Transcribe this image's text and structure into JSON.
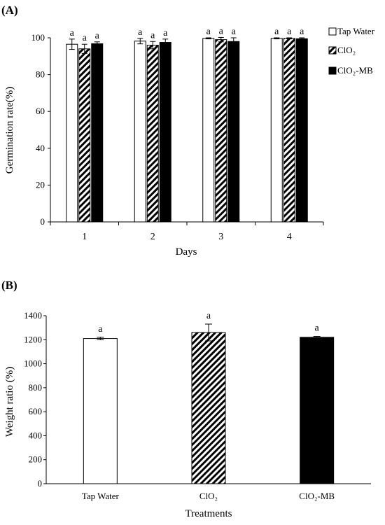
{
  "chart_data": [
    {
      "panel_label": "(A)",
      "type": "bar",
      "xlabel": "Days",
      "ylabel": "Germination rate(%)",
      "ylim": [
        0,
        100
      ],
      "yticks": [
        0,
        20,
        40,
        60,
        80,
        100
      ],
      "categories": [
        "1",
        "2",
        "3",
        "4"
      ],
      "legend_position": "right",
      "series": [
        {
          "name": "Tap Water",
          "fill": "white",
          "values": [
            96.5,
            98.2,
            99.7,
            99.7
          ],
          "errors": [
            2.8,
            1.5,
            0.3,
            0.3
          ],
          "labels": [
            "a",
            "a",
            "a",
            "a"
          ]
        },
        {
          "name": "ClO₂",
          "fill": "hatch",
          "values": [
            94.0,
            96.0,
            99.0,
            99.7
          ],
          "errors": [
            2.5,
            2.0,
            1.2,
            0.3
          ],
          "labels": [
            "a",
            "a",
            "a",
            "a"
          ]
        },
        {
          "name": "ClO₂-MB",
          "fill": "black",
          "values": [
            96.8,
            97.5,
            98.0,
            99.5
          ],
          "errors": [
            1.0,
            1.8,
            2.0,
            0.5
          ],
          "labels": [
            "a",
            "a",
            "a",
            "a"
          ]
        }
      ]
    },
    {
      "panel_label": "(B)",
      "type": "bar",
      "xlabel": "Treatments",
      "ylabel": "Weight ratio (%)",
      "ylim": [
        0,
        1400
      ],
      "yticks": [
        0,
        200,
        400,
        600,
        800,
        1000,
        1200,
        1400
      ],
      "categories": [
        "Tap Water",
        "ClO₂",
        "ClO₂-MB"
      ],
      "fills": [
        "white",
        "hatch",
        "black"
      ],
      "values": [
        1210,
        1260,
        1220
      ],
      "errors": [
        10,
        70,
        8
      ],
      "labels": [
        "a",
        "a",
        "a"
      ]
    }
  ],
  "colors": {
    "axis": "#000000",
    "bar_black": "#000000",
    "bar_white": "#ffffff"
  }
}
